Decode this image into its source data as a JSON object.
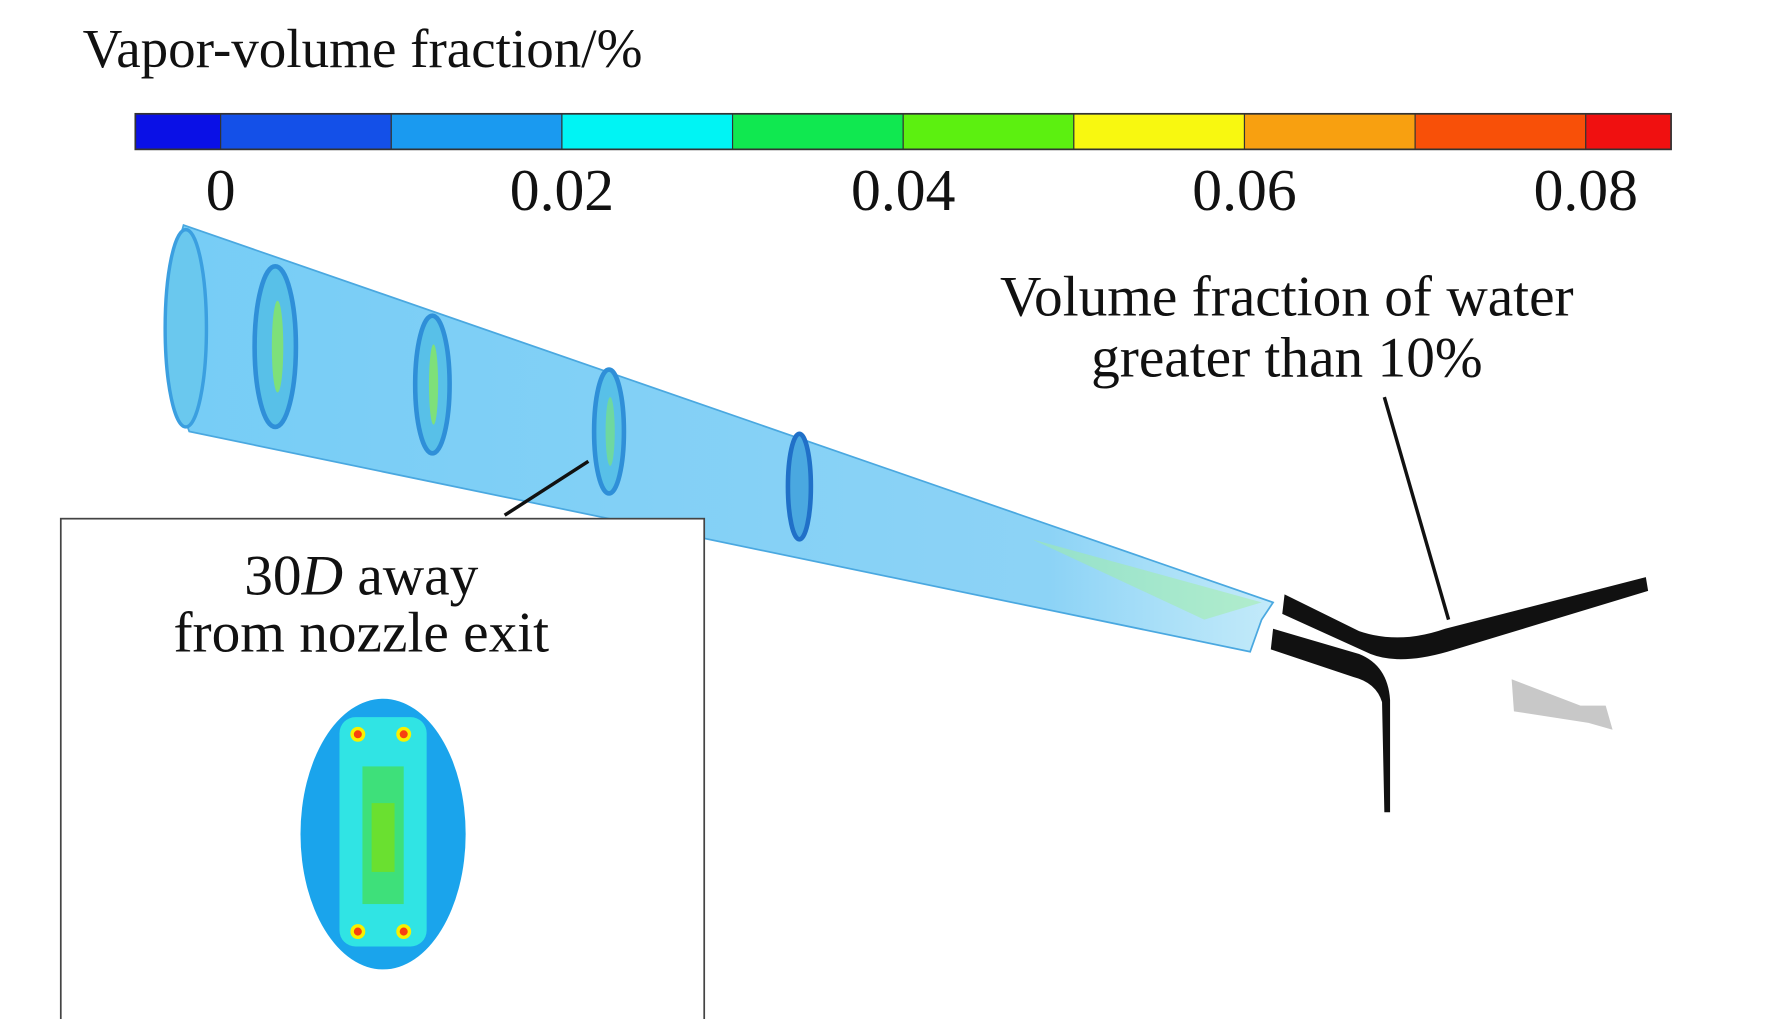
{
  "colorbar": {
    "title": "Vapor-volume fraction/%",
    "lim": [
      -0.005,
      0.085
    ],
    "ticks": [
      0,
      0.02,
      0.04,
      0.06,
      0.08
    ],
    "colors": [
      "#0a10e6",
      "#1450e8",
      "#1a9af0",
      "#00f4f4",
      "#10e850",
      "#5cf010",
      "#f8f810",
      "#f8a010",
      "#f85008",
      "#f01010"
    ]
  },
  "annotations": {
    "water": [
      "Volume fraction of water",
      "greater than 10%"
    ],
    "inset": {
      "line1": [
        "30",
        "D",
        " away"
      ],
      "line2": "from nozzle exit"
    }
  }
}
